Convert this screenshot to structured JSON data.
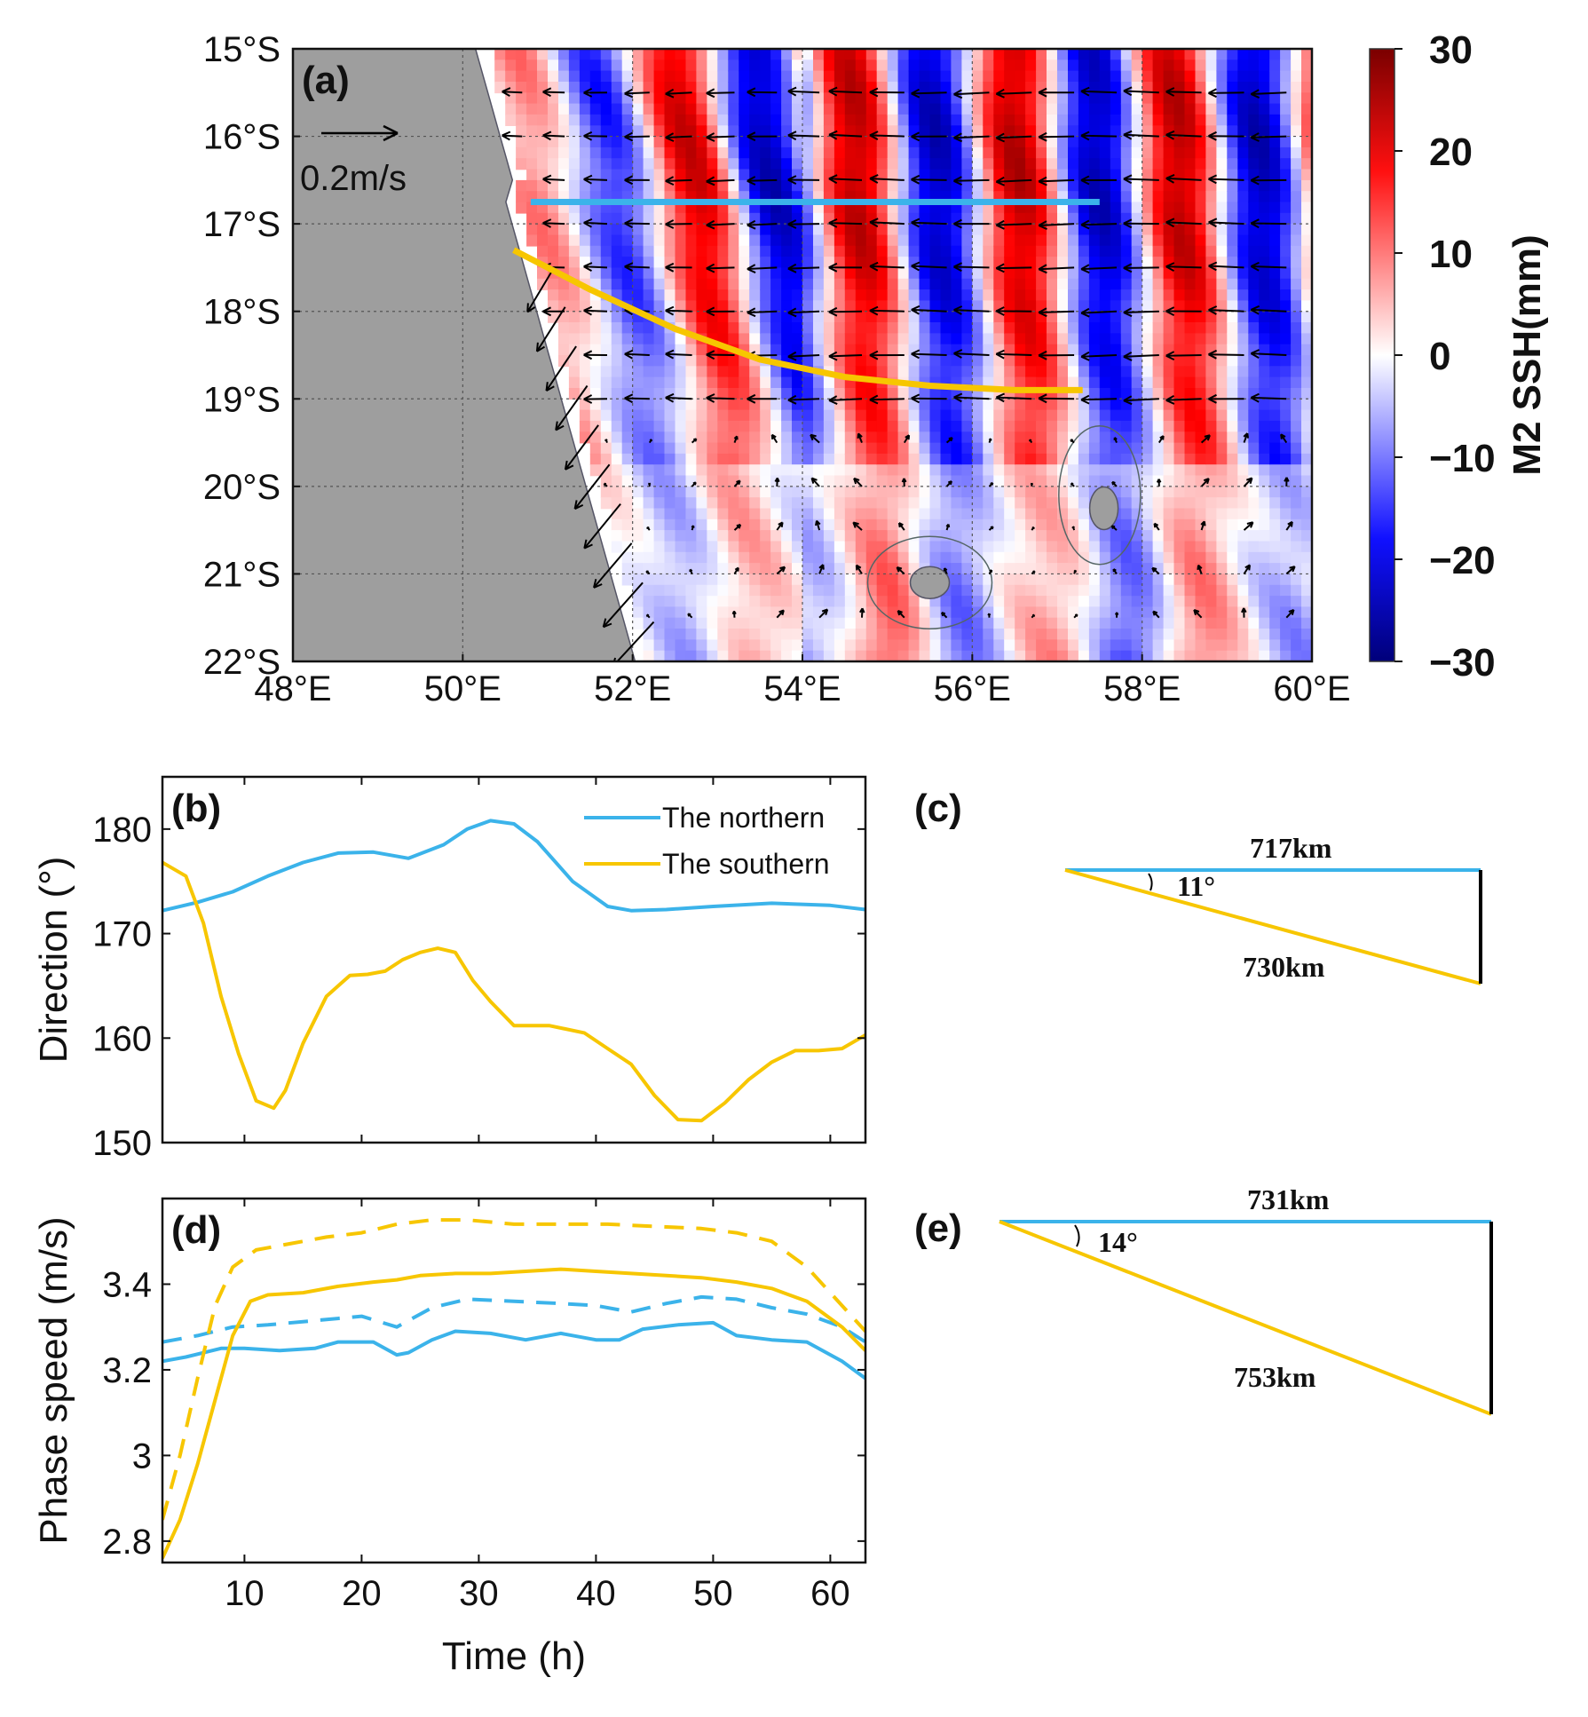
{
  "chart_data": [
    {
      "panel": "(a)",
      "type": "heatmap",
      "colorbar": {
        "label": "M2 SSH(mm)",
        "range": [
          -30,
          30
        ],
        "ticks": [
          "30",
          "20",
          "10",
          "0",
          "−10",
          "−20",
          "−30"
        ],
        "colors": [
          "#00008b",
          "#0000ff",
          "#ffffff",
          "#ff0000",
          "#8b0000"
        ]
      },
      "x_ticks": [
        "48°E",
        "50°E",
        "52°E",
        "54°E",
        "56°E",
        "58°E",
        "60°E"
      ],
      "y_ticks": [
        "15°S",
        "16°S",
        "17°S",
        "18°S",
        "19°S",
        "20°S",
        "21°S",
        "22°S"
      ],
      "xlim": [
        48,
        60
      ],
      "ylim": [
        -22,
        -15
      ],
      "reference_arrow_label": "0.2m/s",
      "northern_line": {
        "color": "#3bb3ea",
        "lon": [
          50.8,
          57.5
        ],
        "lat": [
          -16.75,
          -16.75
        ]
      },
      "southern_line": {
        "color": "#f7c600",
        "lon": [
          50.6,
          51.5,
          52.5,
          53.5,
          54.5,
          55.5,
          56.5,
          57.3
        ],
        "lat": [
          -17.3,
          -17.75,
          -18.2,
          -18.55,
          -18.75,
          -18.85,
          -18.9,
          -18.9
        ]
      }
    },
    {
      "panel": "(b)",
      "type": "line",
      "ylabel": "Direction (°)",
      "xlim": [
        3,
        63
      ],
      "ylim": [
        150,
        185
      ],
      "x_ticks": [
        10,
        20,
        30,
        40,
        50,
        60
      ],
      "y_ticks": [
        150,
        160,
        170,
        180
      ],
      "legend": {
        "position": "top-right",
        "entries": [
          "The northern",
          "The southern"
        ]
      },
      "series": [
        {
          "name": "The northern",
          "color": "#3bb3ea",
          "x": [
            3,
            6,
            9,
            12,
            15,
            18,
            21,
            24,
            27,
            29,
            31,
            33,
            35,
            38,
            41,
            43,
            46,
            50,
            55,
            60,
            63
          ],
          "y": [
            172.2,
            173,
            174,
            175.5,
            176.8,
            177.7,
            177.8,
            177.2,
            178.5,
            180,
            180.8,
            180.5,
            178.8,
            175,
            172.6,
            172.2,
            172.3,
            172.6,
            172.9,
            172.7,
            172.3
          ]
        },
        {
          "name": "The southern",
          "color": "#f7c600",
          "dash": false,
          "x": [
            3,
            5,
            6.5,
            8,
            9.5,
            11,
            12.5,
            13.5,
            15,
            17,
            19,
            20.5,
            22,
            23.5,
            25,
            26.5,
            28,
            29.5,
            31,
            33,
            36,
            39,
            41,
            43,
            45,
            47,
            49,
            51,
            53,
            55,
            57,
            59,
            61,
            63
          ],
          "y": [
            176.8,
            175.5,
            171,
            164,
            158.5,
            154,
            153.3,
            155,
            159.5,
            164,
            166,
            166.1,
            166.4,
            167.5,
            168.2,
            168.6,
            168.2,
            165.5,
            163.5,
            161.2,
            161.2,
            160.5,
            159,
            157.5,
            154.5,
            152.2,
            152.1,
            153.8,
            156,
            157.7,
            158.8,
            158.8,
            159,
            160.3
          ]
        }
      ]
    },
    {
      "panel": "(c)",
      "type": "diagram",
      "top_label": "717km",
      "hyp_label": "730km",
      "angle_label": "11°"
    },
    {
      "panel": "(d)",
      "type": "line",
      "xlabel": "Time (h)",
      "ylabel": "Phase speed (m/s)",
      "xlim": [
        3,
        63
      ],
      "ylim": [
        2.75,
        3.6
      ],
      "x_ticks": [
        10,
        20,
        30,
        40,
        50,
        60
      ],
      "y_ticks": [
        "2.8",
        "3",
        "3.2",
        "3.4"
      ],
      "y_tick_values": [
        2.8,
        3.0,
        3.2,
        3.4
      ],
      "series": [
        {
          "color": "#3bb3ea",
          "dash": false,
          "x": [
            3,
            5,
            8,
            10,
            13,
            16,
            18,
            21,
            23,
            24,
            26,
            28,
            31,
            34,
            37,
            40,
            42,
            44,
            47,
            50,
            52,
            55,
            58,
            61,
            63
          ],
          "y": [
            3.22,
            3.23,
            3.25,
            3.25,
            3.245,
            3.25,
            3.265,
            3.265,
            3.235,
            3.24,
            3.27,
            3.29,
            3.285,
            3.27,
            3.285,
            3.27,
            3.27,
            3.295,
            3.305,
            3.31,
            3.28,
            3.27,
            3.265,
            3.22,
            3.18
          ]
        },
        {
          "color": "#3bb3ea",
          "dash": true,
          "x": [
            3,
            6,
            9,
            12,
            16,
            20,
            23,
            26,
            29,
            33,
            37,
            40,
            43,
            46,
            49,
            52,
            55,
            58,
            61,
            63
          ],
          "y": [
            3.265,
            3.28,
            3.3,
            3.305,
            3.315,
            3.325,
            3.3,
            3.345,
            3.365,
            3.36,
            3.355,
            3.35,
            3.335,
            3.355,
            3.37,
            3.365,
            3.345,
            3.33,
            3.3,
            3.265
          ]
        },
        {
          "color": "#f7c600",
          "dash": false,
          "x": [
            3,
            4.5,
            6,
            7.5,
            9,
            10.5,
            12,
            15,
            18,
            21,
            23,
            25,
            28,
            31,
            34,
            37,
            40,
            43,
            46,
            49,
            52,
            55,
            58,
            61,
            63
          ],
          "y": [
            2.76,
            2.85,
            2.98,
            3.13,
            3.28,
            3.36,
            3.375,
            3.38,
            3.395,
            3.405,
            3.41,
            3.42,
            3.425,
            3.425,
            3.43,
            3.435,
            3.43,
            3.425,
            3.42,
            3.415,
            3.405,
            3.39,
            3.36,
            3.3,
            3.245
          ]
        },
        {
          "color": "#f7c600",
          "dash": true,
          "x": [
            3,
            4.5,
            6,
            7.5,
            9,
            11,
            14,
            17,
            20,
            23,
            26,
            29,
            33,
            37,
            41,
            45,
            49,
            52,
            55,
            58,
            61,
            63
          ],
          "y": [
            2.85,
            3.0,
            3.18,
            3.35,
            3.44,
            3.48,
            3.495,
            3.51,
            3.52,
            3.54,
            3.55,
            3.55,
            3.54,
            3.54,
            3.54,
            3.535,
            3.53,
            3.52,
            3.5,
            3.44,
            3.35,
            3.29
          ]
        }
      ]
    },
    {
      "panel": "(e)",
      "type": "diagram",
      "top_label": "731km",
      "hyp_label": "753km",
      "angle_label": "14°"
    }
  ]
}
